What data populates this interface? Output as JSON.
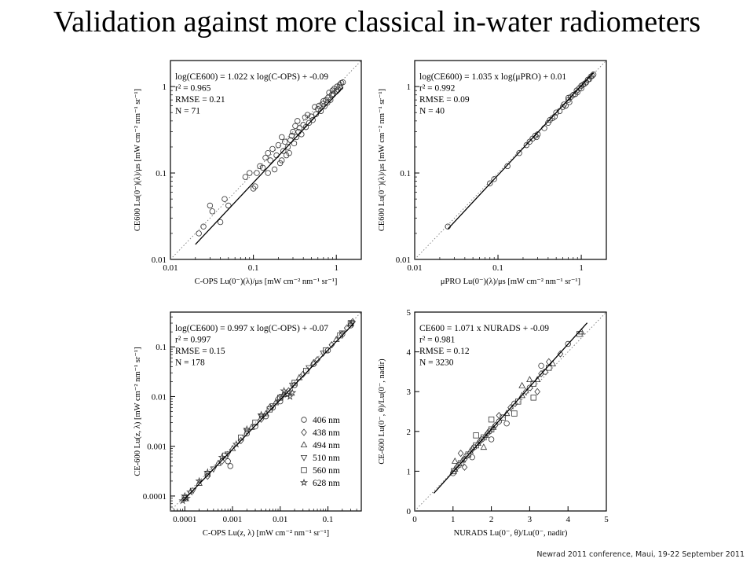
{
  "slide": {
    "title": "Validation against more classical in-water radiometers",
    "footer": "Newrad 2011 conference, Maui, 19-22 September 2011"
  },
  "chart_data": [
    {
      "type": "scatter",
      "id": "p1",
      "xscale": "log",
      "yscale": "log",
      "xlim": [
        0.01,
        2
      ],
      "ylim": [
        0.01,
        2
      ],
      "xticks": [
        0.01,
        0.1,
        1
      ],
      "xtick_labels": [
        "0.01",
        "0.1",
        "1"
      ],
      "yticks": [
        0.01,
        0.1,
        1
      ],
      "ytick_labels": [
        "0.01",
        "0.1",
        "1"
      ],
      "xlabel": "C-OPS Lu(0⁻)(λ)/μs [mW cm⁻² nm⁻¹ sr⁻¹]",
      "ylabel": "CE600 Lu(0⁻)(λ)/μs [mW cm⁻² nm⁻¹ sr⁻¹]",
      "stats": [
        "log(CE600) = 1.022 x log(C-OPS) + -0.09",
        "r² = 0.965",
        "RMSE =  0.21",
        "N = 71"
      ],
      "fit": {
        "slope": 1.022,
        "intercept": -0.09,
        "x_range": [
          0.02,
          1.2
        ]
      },
      "one_to_one": true,
      "marker": "circle",
      "points": [
        [
          0.022,
          0.02
        ],
        [
          0.025,
          0.024
        ],
        [
          0.03,
          0.042
        ],
        [
          0.032,
          0.036
        ],
        [
          0.04,
          0.027
        ],
        [
          0.045,
          0.05
        ],
        [
          0.05,
          0.042
        ],
        [
          0.08,
          0.09
        ],
        [
          0.09,
          0.1
        ],
        [
          0.1,
          0.066
        ],
        [
          0.105,
          0.07
        ],
        [
          0.11,
          0.1
        ],
        [
          0.12,
          0.12
        ],
        [
          0.13,
          0.115
        ],
        [
          0.14,
          0.15
        ],
        [
          0.15,
          0.1
        ],
        [
          0.16,
          0.14
        ],
        [
          0.17,
          0.19
        ],
        [
          0.18,
          0.11
        ],
        [
          0.19,
          0.16
        ],
        [
          0.2,
          0.21
        ],
        [
          0.21,
          0.13
        ],
        [
          0.22,
          0.14
        ],
        [
          0.23,
          0.18
        ],
        [
          0.24,
          0.23
        ],
        [
          0.25,
          0.16
        ],
        [
          0.26,
          0.2
        ],
        [
          0.27,
          0.17
        ],
        [
          0.28,
          0.24
        ],
        [
          0.29,
          0.27
        ],
        [
          0.3,
          0.3
        ],
        [
          0.31,
          0.22
        ],
        [
          0.32,
          0.35
        ],
        [
          0.33,
          0.26
        ],
        [
          0.34,
          0.4
        ],
        [
          0.35,
          0.3
        ],
        [
          0.36,
          0.33
        ],
        [
          0.38,
          0.28
        ],
        [
          0.4,
          0.36
        ],
        [
          0.42,
          0.44
        ],
        [
          0.43,
          0.34
        ],
        [
          0.45,
          0.47
        ],
        [
          0.47,
          0.38
        ],
        [
          0.5,
          0.45
        ],
        [
          0.52,
          0.41
        ],
        [
          0.55,
          0.58
        ],
        [
          0.57,
          0.48
        ],
        [
          0.6,
          0.55
        ],
        [
          0.62,
          0.6
        ],
        [
          0.65,
          0.52
        ],
        [
          0.68,
          0.63
        ],
        [
          0.7,
          0.68
        ],
        [
          0.72,
          0.59
        ],
        [
          0.75,
          0.7
        ],
        [
          0.78,
          0.65
        ],
        [
          0.8,
          0.75
        ],
        [
          0.82,
          0.85
        ],
        [
          0.85,
          0.7
        ],
        [
          0.88,
          0.8
        ],
        [
          0.9,
          0.9
        ],
        [
          0.92,
          0.82
        ],
        [
          0.95,
          0.95
        ],
        [
          1.0,
          0.88
        ],
        [
          1.02,
          1.0
        ],
        [
          1.05,
          0.92
        ],
        [
          1.1,
          1.05
        ],
        [
          1.12,
          0.98
        ],
        [
          1.15,
          1.1
        ],
        [
          1.2,
          1.12
        ],
        [
          0.15,
          0.17
        ],
        [
          0.22,
          0.26
        ]
      ]
    },
    {
      "type": "scatter",
      "id": "p2",
      "xscale": "log",
      "yscale": "log",
      "xlim": [
        0.01,
        2
      ],
      "ylim": [
        0.01,
        2
      ],
      "xticks": [
        0.01,
        0.1,
        1
      ],
      "xtick_labels": [
        "0.01",
        "0.1",
        "1"
      ],
      "yticks": [
        0.01,
        0.1,
        1
      ],
      "ytick_labels": [
        "0.01",
        "0.1",
        "1"
      ],
      "xlabel": "μPRO Lu(0⁻)(λ)/μs [mW cm⁻² nm⁻¹ sr⁻¹]",
      "ylabel": "CE600 Lu(0⁻)(λ)/μs [mW cm⁻² nm⁻¹ sr⁻¹]",
      "stats": [
        "log(CE600) = 1.035 x log(μPRO) + 0.01",
        "r² = 0.992",
        "RMSE =  0.09",
        "N = 40"
      ],
      "fit": {
        "slope": 1.035,
        "intercept": 0.01,
        "x_range": [
          0.025,
          1.4
        ]
      },
      "one_to_one": true,
      "marker": "circle",
      "points": [
        [
          0.025,
          0.024
        ],
        [
          0.08,
          0.076
        ],
        [
          0.09,
          0.085
        ],
        [
          0.13,
          0.12
        ],
        [
          0.18,
          0.17
        ],
        [
          0.22,
          0.21
        ],
        [
          0.24,
          0.23
        ],
        [
          0.26,
          0.25
        ],
        [
          0.28,
          0.27
        ],
        [
          0.29,
          0.26
        ],
        [
          0.3,
          0.28
        ],
        [
          0.36,
          0.33
        ],
        [
          0.4,
          0.38
        ],
        [
          0.42,
          0.41
        ],
        [
          0.45,
          0.43
        ],
        [
          0.48,
          0.45
        ],
        [
          0.5,
          0.5
        ],
        [
          0.55,
          0.52
        ],
        [
          0.6,
          0.58
        ],
        [
          0.62,
          0.62
        ],
        [
          0.65,
          0.6
        ],
        [
          0.7,
          0.7
        ],
        [
          0.72,
          0.66
        ],
        [
          0.75,
          0.76
        ],
        [
          0.8,
          0.8
        ],
        [
          0.85,
          0.82
        ],
        [
          0.88,
          0.9
        ],
        [
          0.9,
          0.86
        ],
        [
          0.95,
          0.96
        ],
        [
          1.0,
          0.95
        ],
        [
          1.0,
          1.02
        ],
        [
          1.05,
          1.05
        ],
        [
          1.1,
          1.08
        ],
        [
          1.15,
          1.12
        ],
        [
          1.2,
          1.2
        ],
        [
          1.25,
          1.22
        ],
        [
          1.3,
          1.3
        ],
        [
          1.35,
          1.33
        ],
        [
          1.4,
          1.38
        ],
        [
          0.7,
          0.74
        ]
      ]
    },
    {
      "type": "scatter",
      "id": "p3",
      "xscale": "log",
      "yscale": "log",
      "xlim": [
        5e-05,
        0.5
      ],
      "ylim": [
        5e-05,
        0.5
      ],
      "xticks": [
        0.0001,
        0.001,
        0.01,
        0.1
      ],
      "xtick_labels": [
        "0.0001",
        "0.001",
        "0.01",
        "0.1"
      ],
      "yticks": [
        0.0001,
        0.001,
        0.01,
        0.1
      ],
      "ytick_labels": [
        "0.0001",
        "0.001",
        "0.01",
        "0.1"
      ],
      "xlabel": "C-OPS Lu(z, λ) [mW cm⁻² nm⁻¹ sr⁻¹]",
      "ylabel": "CE-600 Lu(z, λ) [mW cm⁻² nm⁻¹ sr⁻¹]",
      "stats": [
        "log(CE600) = 0.997 x log(C-OPS) + -0.07",
        "r² = 0.997",
        "RMSE =  0.15",
        "N = 178"
      ],
      "fit": {
        "slope": 0.997,
        "intercept": -0.07,
        "x_range": [
          9e-05,
          0.35
        ]
      },
      "one_to_one": true,
      "legend": {
        "position": "lower-right",
        "entries": [
          {
            "name": "406 nm",
            "marker": "circle"
          },
          {
            "name": "438 nm",
            "marker": "diamond"
          },
          {
            "name": "494 nm",
            "marker": "triangle-up"
          },
          {
            "name": "510 nm",
            "marker": "triangle-down"
          },
          {
            "name": "560 nm",
            "marker": "square"
          },
          {
            "name": "628 nm",
            "marker": "star"
          }
        ]
      },
      "series": [
        {
          "name": "406 nm",
          "marker": "circle",
          "points": [
            [
              0.0008,
              0.0005
            ],
            [
              0.0009,
              0.0004
            ],
            [
              0.002,
              0.0018
            ],
            [
              0.003,
              0.0025
            ],
            [
              0.005,
              0.004
            ],
            [
              0.007,
              0.006
            ],
            [
              0.01,
              0.008
            ],
            [
              0.02,
              0.017
            ],
            [
              0.05,
              0.045
            ],
            [
              0.1,
              0.085
            ],
            [
              0.2,
              0.18
            ],
            [
              0.3,
              0.27
            ]
          ]
        },
        {
          "name": "438 nm",
          "marker": "diamond",
          "points": [
            [
              0.0003,
              0.00025
            ],
            [
              0.0006,
              0.0005
            ],
            [
              0.0015,
              0.0013
            ],
            [
              0.004,
              0.0035
            ],
            [
              0.006,
              0.006
            ],
            [
              0.009,
              0.009
            ],
            [
              0.015,
              0.013
            ],
            [
              0.03,
              0.028
            ],
            [
              0.06,
              0.055
            ],
            [
              0.12,
              0.11
            ],
            [
              0.25,
              0.24
            ],
            [
              0.33,
              0.32
            ]
          ]
        },
        {
          "name": "494 nm",
          "marker": "triangle-up",
          "points": [
            [
              0.0002,
              0.00018
            ],
            [
              0.0005,
              0.00045
            ],
            [
              0.001,
              0.0009
            ],
            [
              0.0025,
              0.0024
            ],
            [
              0.005,
              0.0045
            ],
            [
              0.008,
              0.0075
            ],
            [
              0.012,
              0.011
            ],
            [
              0.025,
              0.024
            ],
            [
              0.05,
              0.048
            ],
            [
              0.15,
              0.14
            ],
            [
              0.3,
              0.29
            ]
          ]
        },
        {
          "name": "510 nm",
          "marker": "triangle-down",
          "points": [
            [
              0.00015,
              0.00013
            ],
            [
              0.0004,
              0.00035
            ],
            [
              0.0008,
              0.0007
            ],
            [
              0.002,
              0.002
            ],
            [
              0.004,
              0.004
            ],
            [
              0.007,
              0.0065
            ],
            [
              0.011,
              0.01
            ],
            [
              0.018,
              0.017
            ],
            [
              0.04,
              0.038
            ],
            [
              0.08,
              0.075
            ],
            [
              0.2,
              0.19
            ],
            [
              0.32,
              0.3
            ]
          ]
        },
        {
          "name": "560 nm",
          "marker": "square",
          "points": [
            [
              0.0001,
              9e-05
            ],
            [
              0.0003,
              0.00028
            ],
            [
              0.0007,
              0.00065
            ],
            [
              0.0015,
              0.0015
            ],
            [
              0.003,
              0.003
            ],
            [
              0.006,
              0.0055
            ],
            [
              0.01,
              0.0095
            ],
            [
              0.02,
              0.019
            ],
            [
              0.035,
              0.033
            ],
            [
              0.09,
              0.085
            ],
            [
              0.18,
              0.17
            ],
            [
              0.3,
              0.3
            ]
          ]
        },
        {
          "name": "628 nm",
          "marker": "star",
          "points": [
            [
              9e-05,
              8e-05
            ],
            [
              0.0001,
              0.0001
            ],
            [
              0.00011,
              9e-05
            ],
            [
              0.00013,
              0.00012
            ],
            [
              0.0002,
              0.0002
            ],
            [
              0.0003,
              0.0003
            ],
            [
              0.0006,
              0.0006
            ],
            [
              0.0012,
              0.0011
            ],
            [
              0.002,
              0.0022
            ],
            [
              0.004,
              0.0043
            ],
            [
              0.012,
              0.013
            ],
            [
              0.014,
              0.011
            ],
            [
              0.016,
              0.01
            ],
            [
              0.018,
              0.012
            ]
          ]
        }
      ]
    },
    {
      "type": "scatter",
      "id": "p4",
      "xscale": "linear",
      "yscale": "linear",
      "xlim": [
        0,
        5
      ],
      "ylim": [
        0,
        5
      ],
      "xticks": [
        0,
        1,
        2,
        3,
        4,
        5
      ],
      "xtick_labels": [
        "0",
        "1",
        "2",
        "3",
        "4",
        "5"
      ],
      "yticks": [
        0,
        1,
        2,
        3,
        4,
        5
      ],
      "ytick_labels": [
        "0",
        "1",
        "2",
        "3",
        "4",
        "5"
      ],
      "xlabel": "NURADS Lu(0⁻, θ)/Lu(0⁻, nadir)",
      "ylabel": "CE-600 Lu(0⁻, θ)/Lu(0⁻, nadir)",
      "stats": [
        "CE600 = 1.071 x NURADS + -0.09",
        "r² = 0.981",
        "RMSE =  0.12",
        "N = 3230"
      ],
      "fit": {
        "slope": 1.071,
        "intercept": -0.09,
        "x_range": [
          0.5,
          4.5
        ]
      },
      "one_to_one": true,
      "marker": "mixed",
      "points": [
        [
          1.0,
          0.95
        ],
        [
          1.02,
          1.0
        ],
        [
          1.05,
          1.05
        ],
        [
          1.1,
          1.1
        ],
        [
          1.15,
          1.15
        ],
        [
          1.2,
          1.2
        ],
        [
          1.25,
          1.28
        ],
        [
          1.3,
          1.3
        ],
        [
          1.35,
          1.38
        ],
        [
          1.4,
          1.42
        ],
        [
          1.45,
          1.5
        ],
        [
          1.5,
          1.55
        ],
        [
          1.55,
          1.6
        ],
        [
          1.6,
          1.65
        ],
        [
          1.65,
          1.7
        ],
        [
          1.7,
          1.75
        ],
        [
          1.75,
          1.8
        ],
        [
          1.8,
          1.85
        ],
        [
          1.85,
          1.9
        ],
        [
          1.9,
          1.95
        ],
        [
          1.95,
          2.0
        ],
        [
          2.0,
          2.05
        ],
        [
          2.05,
          2.1
        ],
        [
          2.1,
          2.15
        ],
        [
          2.2,
          2.25
        ],
        [
          2.3,
          2.35
        ],
        [
          2.4,
          2.45
        ],
        [
          2.5,
          2.6
        ],
        [
          2.6,
          2.7
        ],
        [
          2.7,
          2.75
        ],
        [
          2.8,
          2.9
        ],
        [
          2.9,
          3.0
        ],
        [
          3.0,
          3.1
        ],
        [
          3.1,
          3.2
        ],
        [
          3.2,
          3.3
        ],
        [
          3.3,
          3.45
        ],
        [
          3.4,
          3.5
        ],
        [
          3.5,
          3.6
        ],
        [
          3.6,
          3.7
        ],
        [
          3.8,
          3.95
        ],
        [
          4.0,
          4.2
        ],
        [
          4.3,
          4.45
        ],
        [
          4.35,
          4.5
        ],
        [
          1.2,
          1.45
        ],
        [
          1.5,
          1.35
        ],
        [
          1.6,
          1.9
        ],
        [
          1.8,
          1.6
        ],
        [
          2.2,
          2.4
        ],
        [
          2.4,
          2.2
        ],
        [
          2.6,
          2.45
        ],
        [
          3.0,
          3.3
        ],
        [
          3.2,
          3.0
        ],
        [
          3.3,
          3.65
        ],
        [
          3.1,
          2.85
        ],
        [
          1.05,
          1.25
        ],
        [
          1.3,
          1.1
        ],
        [
          2.0,
          1.8
        ],
        [
          2.0,
          2.3
        ],
        [
          2.8,
          3.15
        ],
        [
          3.5,
          3.75
        ]
      ]
    }
  ]
}
